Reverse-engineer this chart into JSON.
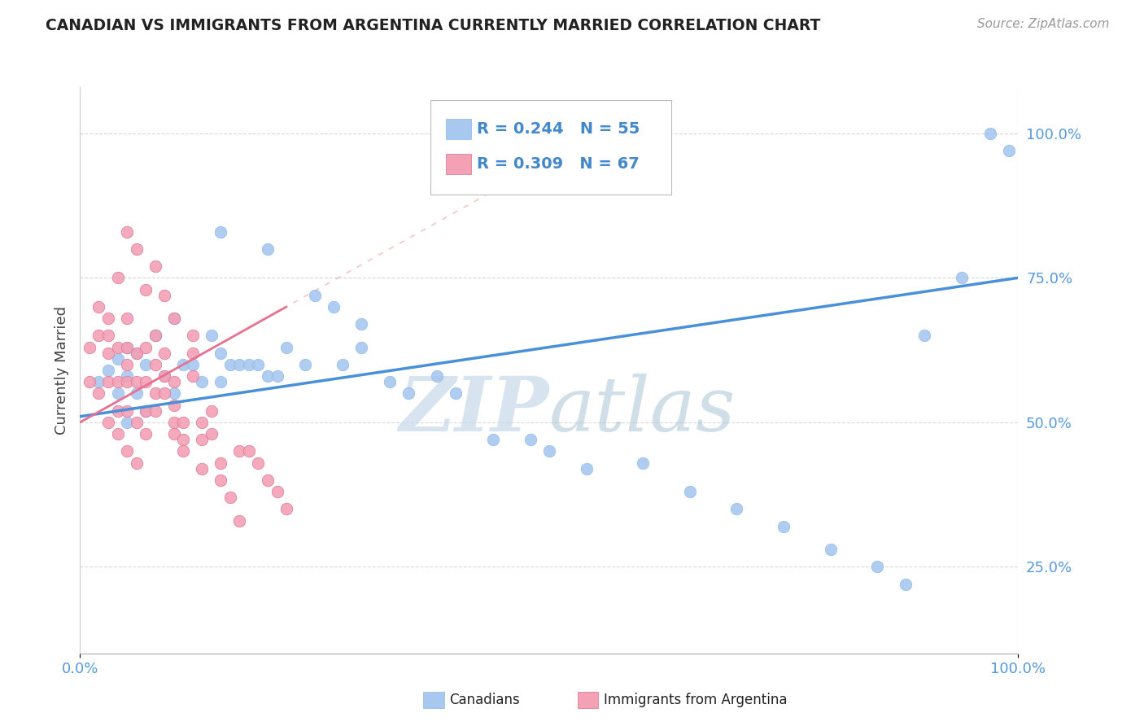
{
  "title": "CANADIAN VS IMMIGRANTS FROM ARGENTINA CURRENTLY MARRIED CORRELATION CHART",
  "source": "Source: ZipAtlas.com",
  "ylabel": "Currently Married",
  "xlim": [
    0.0,
    1.0
  ],
  "ylim": [
    0.1,
    1.08
  ],
  "y_ticks": [
    0.25,
    0.5,
    0.75,
    1.0
  ],
  "y_tick_labels": [
    "25.0%",
    "50.0%",
    "75.0%",
    "100.0%"
  ],
  "legend_R1": "R = 0.244",
  "legend_N1": "N = 55",
  "legend_R2": "R = 0.309",
  "legend_N2": "N = 67",
  "canadian_color": "#a8c8f0",
  "argentina_color": "#f4a0b5",
  "canadian_line_color": "#4a90d9",
  "argentina_line_color": "#e87090",
  "watermark_color": "#c8d8ea",
  "background_color": "#ffffff",
  "grid_color": "#d8d8d8",
  "canadians_x": [
    0.02,
    0.03,
    0.04,
    0.04,
    0.05,
    0.05,
    0.05,
    0.06,
    0.06,
    0.07,
    0.07,
    0.08,
    0.09,
    0.1,
    0.1,
    0.11,
    0.12,
    0.13,
    0.14,
    0.15,
    0.15,
    0.16,
    0.17,
    0.18,
    0.19,
    0.2,
    0.21,
    0.22,
    0.24,
    0.27,
    0.28,
    0.3,
    0.33,
    0.35,
    0.38,
    0.4,
    0.44,
    0.48,
    0.5,
    0.54,
    0.6,
    0.65,
    0.7,
    0.75,
    0.8,
    0.85,
    0.88,
    0.9,
    0.94,
    0.97,
    0.99,
    0.15,
    0.2,
    0.25,
    0.3
  ],
  "canadians_y": [
    0.57,
    0.59,
    0.61,
    0.55,
    0.58,
    0.63,
    0.5,
    0.62,
    0.55,
    0.6,
    0.52,
    0.65,
    0.58,
    0.55,
    0.68,
    0.6,
    0.6,
    0.57,
    0.65,
    0.57,
    0.62,
    0.6,
    0.6,
    0.6,
    0.6,
    0.58,
    0.58,
    0.63,
    0.6,
    0.7,
    0.6,
    0.63,
    0.57,
    0.55,
    0.58,
    0.55,
    0.47,
    0.47,
    0.45,
    0.42,
    0.43,
    0.38,
    0.35,
    0.32,
    0.28,
    0.25,
    0.22,
    0.65,
    0.75,
    1.0,
    0.97,
    0.83,
    0.8,
    0.72,
    0.67
  ],
  "argentina_x": [
    0.01,
    0.01,
    0.02,
    0.02,
    0.02,
    0.03,
    0.03,
    0.03,
    0.03,
    0.03,
    0.04,
    0.04,
    0.04,
    0.04,
    0.04,
    0.05,
    0.05,
    0.05,
    0.05,
    0.05,
    0.05,
    0.06,
    0.06,
    0.06,
    0.06,
    0.07,
    0.07,
    0.07,
    0.07,
    0.08,
    0.08,
    0.08,
    0.08,
    0.09,
    0.09,
    0.09,
    0.1,
    0.1,
    0.1,
    0.1,
    0.11,
    0.11,
    0.11,
    0.12,
    0.12,
    0.13,
    0.13,
    0.13,
    0.14,
    0.14,
    0.15,
    0.15,
    0.16,
    0.17,
    0.17,
    0.18,
    0.19,
    0.2,
    0.21,
    0.22,
    0.1,
    0.12,
    0.08,
    0.09,
    0.06,
    0.07,
    0.05
  ],
  "argentina_y": [
    0.57,
    0.63,
    0.7,
    0.65,
    0.55,
    0.62,
    0.65,
    0.57,
    0.5,
    0.68,
    0.63,
    0.57,
    0.52,
    0.48,
    0.75,
    0.6,
    0.63,
    0.57,
    0.52,
    0.45,
    0.68,
    0.62,
    0.57,
    0.5,
    0.43,
    0.63,
    0.57,
    0.52,
    0.48,
    0.6,
    0.55,
    0.52,
    0.65,
    0.58,
    0.55,
    0.62,
    0.57,
    0.53,
    0.5,
    0.48,
    0.5,
    0.47,
    0.45,
    0.62,
    0.58,
    0.5,
    0.47,
    0.42,
    0.52,
    0.48,
    0.43,
    0.4,
    0.37,
    0.33,
    0.45,
    0.45,
    0.43,
    0.4,
    0.38,
    0.35,
    0.68,
    0.65,
    0.77,
    0.72,
    0.8,
    0.73,
    0.83
  ]
}
